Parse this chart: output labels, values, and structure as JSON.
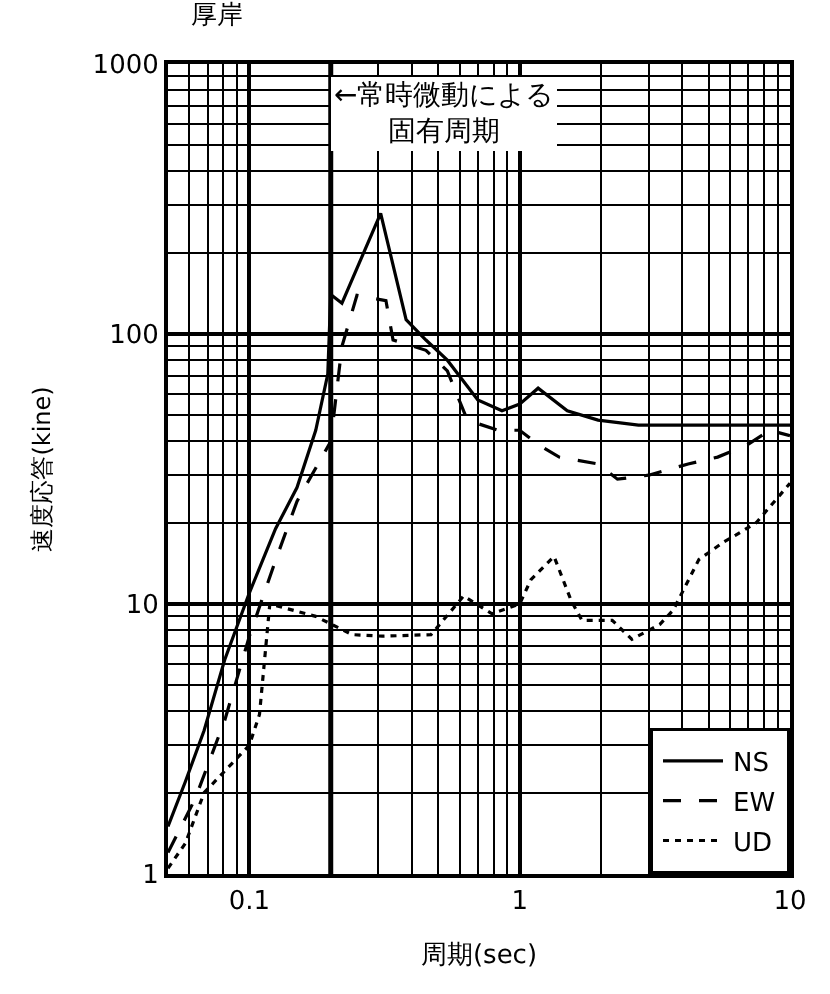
{
  "chart_data": {
    "type": "line",
    "title": "厚岸",
    "xlabel": "周期(sec)",
    "ylabel": "速度応答(kine)",
    "log": "xy",
    "grid": true,
    "legend": "bottom right",
    "marker": "none",
    "xlim": [
      0.05,
      10
    ],
    "xticks": [
      0.1,
      1,
      10
    ],
    "ylim": [
      1,
      1000
    ],
    "yticks": [
      1,
      10,
      100,
      1000
    ],
    "ref_lines": [
      {
        "axis": "x",
        "value": 0.2,
        "label": "←常時微動による固有周期",
        "color": "#000000",
        "line_style": "solid"
      }
    ],
    "series": [
      {
        "name": "NS",
        "color": "#000000",
        "line_style": "solid",
        "x": [
          0.05,
          0.058,
          0.068,
          0.081,
          0.1,
          0.125,
          0.15,
          0.176,
          0.195,
          0.2,
          0.22,
          0.306,
          0.38,
          0.45,
          0.54,
          0.7,
          0.86,
          1.0,
          1.17,
          1.5,
          1.95,
          2.75,
          5.4,
          10
        ],
        "values": [
          1.5,
          2.2,
          3.4,
          6.2,
          11,
          19,
          27,
          44,
          71,
          140,
          130,
          280,
          113,
          95,
          80,
          57,
          52,
          55,
          63,
          52,
          48,
          46,
          46,
          46
        ]
      },
      {
        "name": "EW",
        "color": "#000000",
        "line_style": "dashed",
        "x": [
          0.05,
          0.063,
          0.081,
          0.1,
          0.125,
          0.15,
          0.2,
          0.22,
          0.25,
          0.32,
          0.34,
          0.38,
          0.45,
          0.54,
          0.64,
          0.83,
          1.0,
          1.17,
          1.4,
          1.95,
          2.3,
          3,
          4.2,
          5.4,
          7,
          8.4,
          10
        ],
        "values": [
          1.2,
          1.9,
          3.7,
          7.6,
          14.5,
          24,
          40,
          90,
          139,
          133,
          95,
          92,
          87,
          73,
          48,
          44,
          44,
          39,
          35,
          33,
          29,
          30,
          33,
          35,
          39,
          44,
          42
        ]
      },
      {
        "name": "UD",
        "color": "#000000",
        "line_style": "dotted",
        "x": [
          0.05,
          0.058,
          0.068,
          0.1,
          0.109,
          0.119,
          0.176,
          0.24,
          0.31,
          0.47,
          0.62,
          0.79,
          1.0,
          1.1,
          1.34,
          1.55,
          1.7,
          2.2,
          2.6,
          3.3,
          3.7,
          4.6,
          5.7,
          6.3,
          7.5,
          10
        ],
        "values": [
          1.05,
          1.3,
          2.0,
          3.0,
          3.9,
          10,
          9,
          7.7,
          7.6,
          7.7,
          10.7,
          9.2,
          10,
          12.3,
          15,
          10.3,
          8.7,
          8.7,
          7.4,
          8.4,
          9.5,
          14.6,
          17,
          18,
          20,
          28
        ]
      }
    ]
  }
}
